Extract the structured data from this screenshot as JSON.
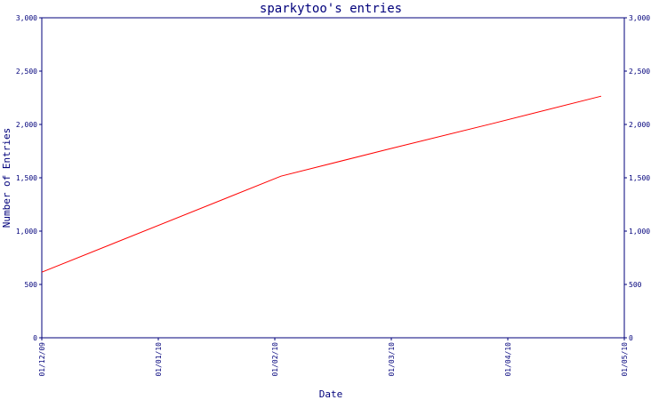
{
  "chart_data": {
    "type": "line",
    "title": "sparkytoo's entries",
    "xlabel": "Date",
    "ylabel": "Number of Entries",
    "x_tick_labels": [
      "01/12/09",
      "01/01/10",
      "01/02/10",
      "01/03/10",
      "01/04/10",
      "01/05/10"
    ],
    "y_tick_labels": [
      "0",
      "500",
      "1,000",
      "1,500",
      "2,000",
      "2,500",
      "3,000"
    ],
    "y_tick_values": [
      0,
      500,
      1000,
      1500,
      2000,
      2500,
      3000
    ],
    "ylim": [
      0,
      3000
    ],
    "xlim": [
      "2009-12-01",
      "2010-05-01"
    ],
    "series": [
      {
        "x": [
          "2009-12-01",
          "2010-02-01",
          "2010-03-01",
          "2010-03-28",
          "2010-04-25"
        ],
        "y": [
          615,
          1515,
          1770,
          2010,
          2265
        ]
      }
    ],
    "grid": false,
    "colors": {
      "line": "#ff0000",
      "axes": "#00007b",
      "text": "#00007b",
      "background": "#ffffff"
    }
  }
}
